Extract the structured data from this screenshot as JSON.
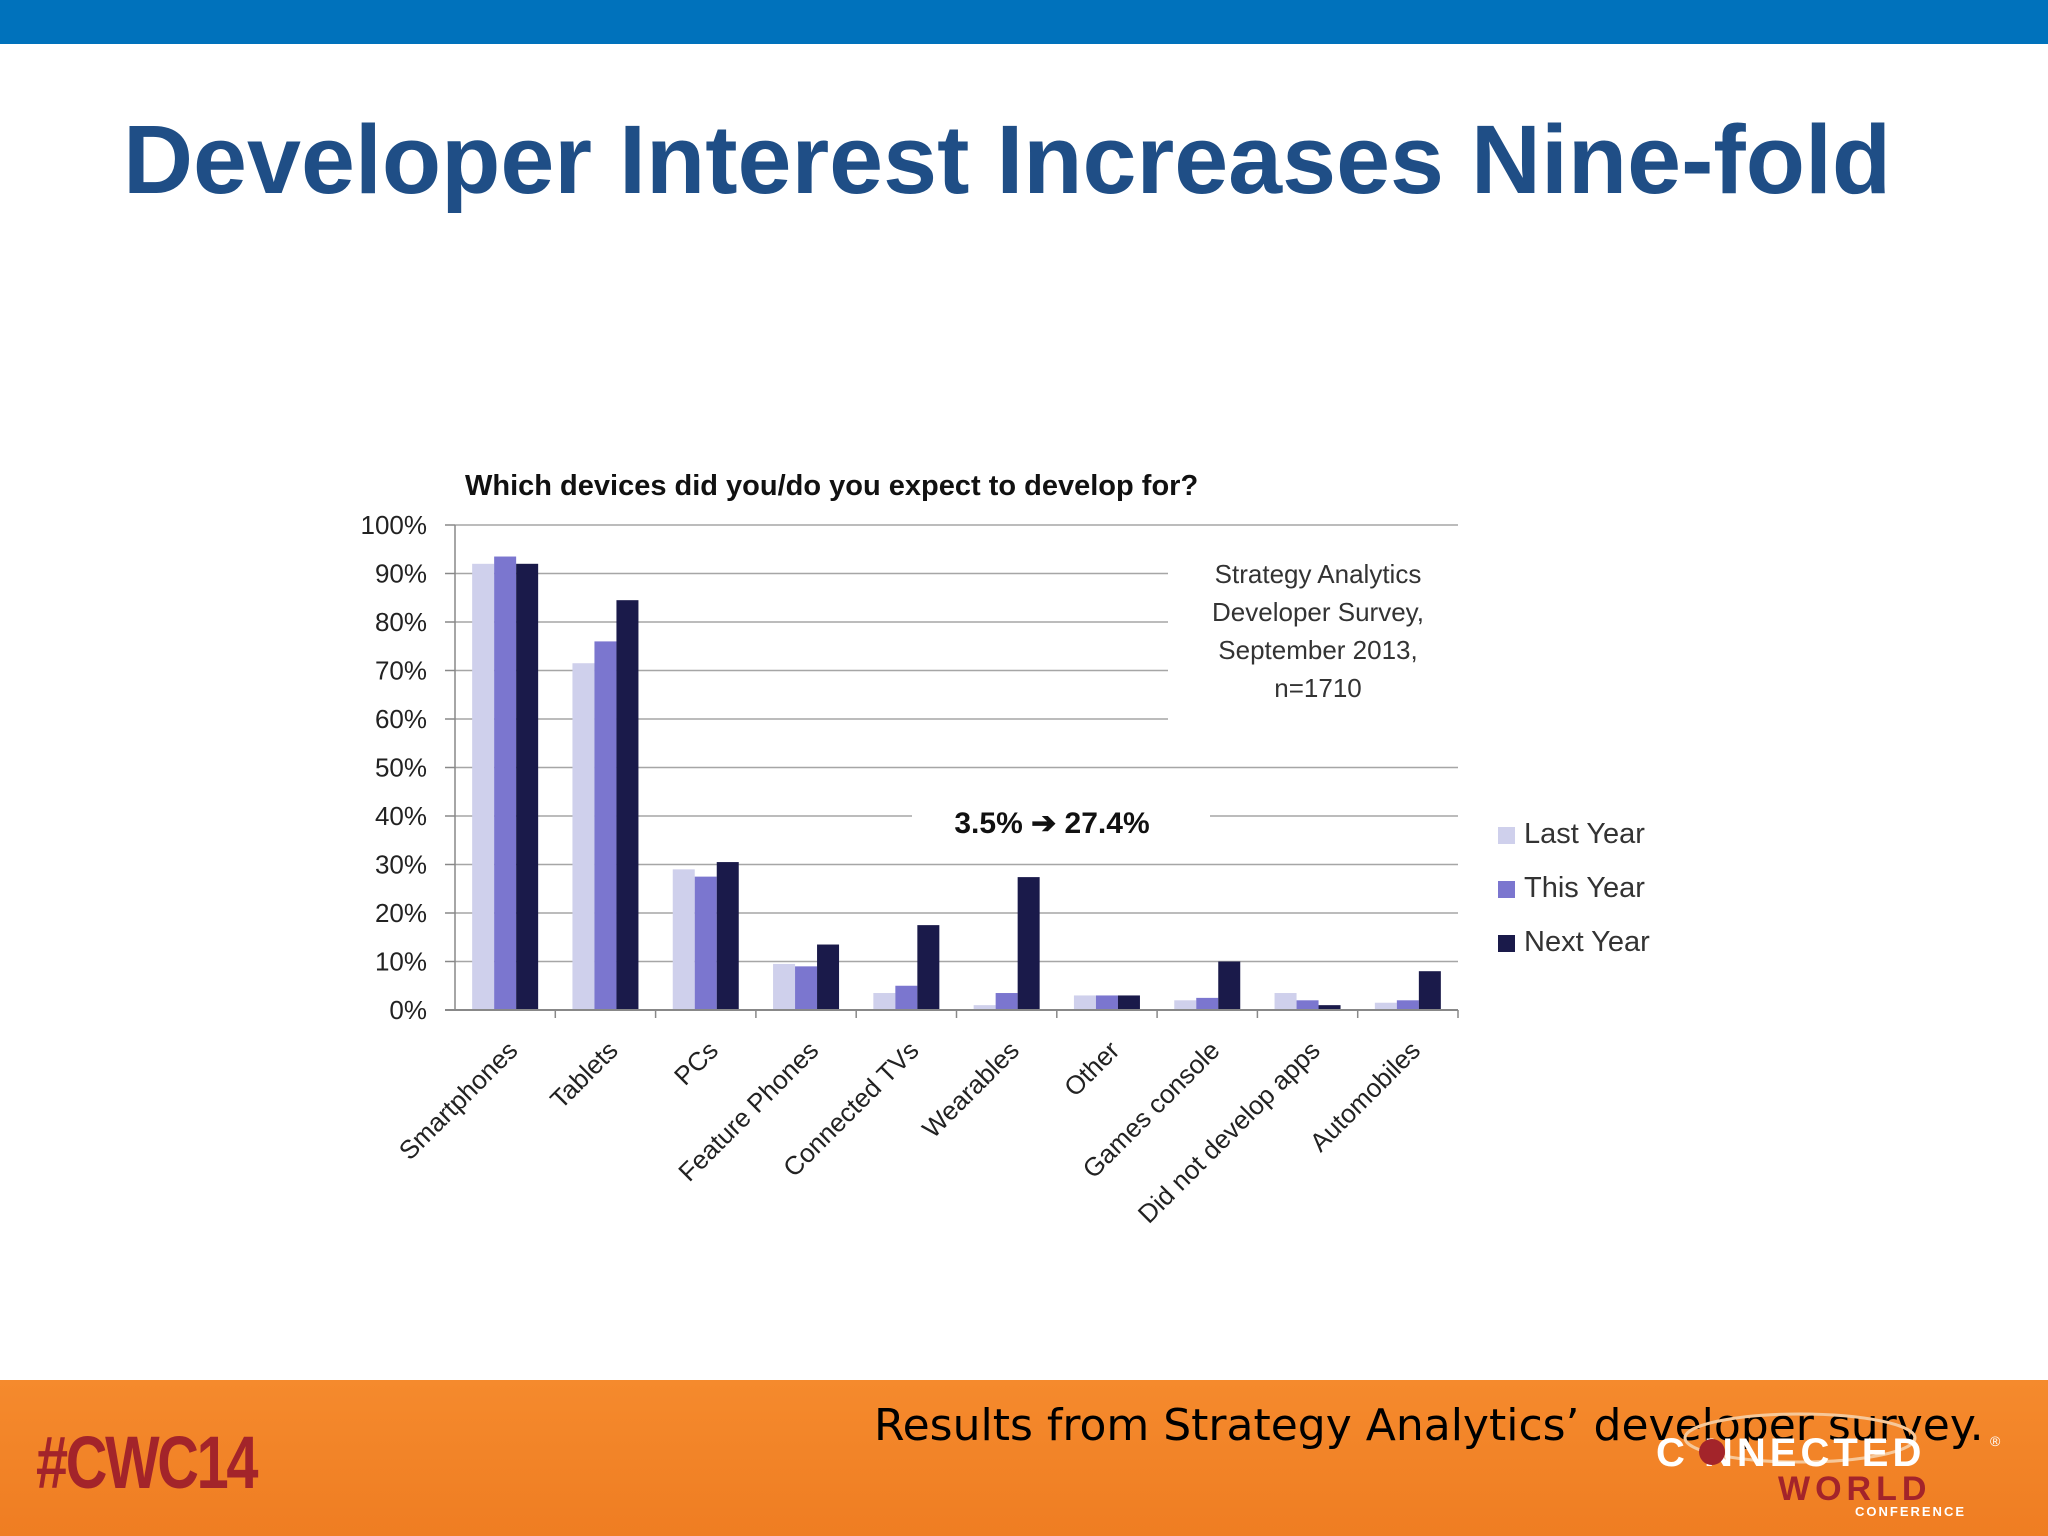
{
  "slide": {
    "title": "Developer Interest Increases Nine-fold",
    "caption": "Results from Strategy Analytics’ developer survey.",
    "hashtag": "#CWC14",
    "logo": {
      "line1": "C NNECTED",
      "line2": "WORLD",
      "line3": "CONFERENCE",
      "registered": "®"
    }
  },
  "colors": {
    "top_bar": "#0072bc",
    "title": "#1f4e86",
    "bottom_bar": "#f2832a",
    "hashtag": "#a3242a"
  },
  "chart_data": {
    "type": "bar",
    "title": "Which devices did you/do you expect to develop for?",
    "categories": [
      "Smartphones",
      "Tablets",
      "PCs",
      "Feature Phones",
      "Connected TVs",
      "Wearables",
      "Other",
      "Games console",
      "Did not develop apps",
      "Automobiles"
    ],
    "series": [
      {
        "name": "Last Year",
        "color": "#cfd0ec",
        "values": [
          92,
          71.5,
          29,
          9.5,
          3.5,
          1,
          3,
          2,
          3.5,
          1.5
        ]
      },
      {
        "name": "This Year",
        "color": "#7b76cf",
        "values": [
          93.5,
          76,
          27.5,
          9,
          5,
          3.5,
          3,
          2.5,
          2,
          2
        ]
      },
      {
        "name": "Next Year",
        "color": "#1a1a4a",
        "values": [
          92,
          84.5,
          30.5,
          13.5,
          17.5,
          27.4,
          3,
          10,
          1,
          8
        ]
      }
    ],
    "yticks": [
      "0%",
      "10%",
      "20%",
      "30%",
      "40%",
      "50%",
      "60%",
      "70%",
      "80%",
      "90%",
      "100%"
    ],
    "ylim": [
      0,
      100
    ],
    "grid": true,
    "legend": "right",
    "annotations": {
      "source": [
        "Strategy Analytics",
        "Developer Survey,",
        "September 2013,",
        "n=1710"
      ],
      "highlight": "3.5% ➔ 27.4%"
    }
  }
}
